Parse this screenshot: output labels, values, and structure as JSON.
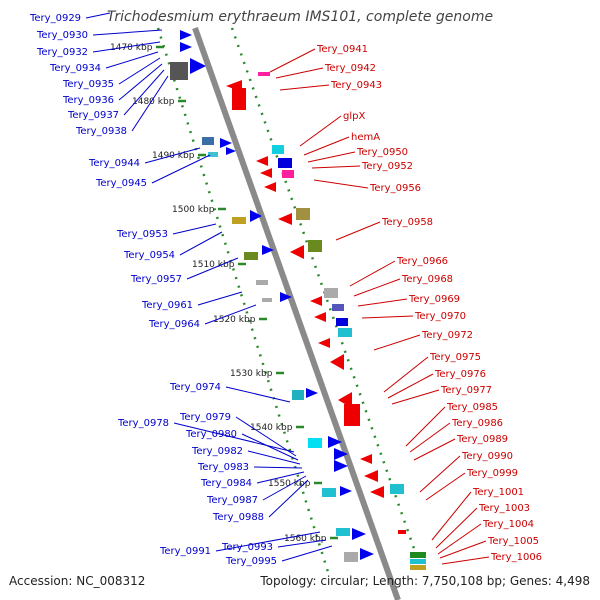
{
  "title": "Trichodesmium erythraeum IMS101, complete genome",
  "accession": "Accession: NC_008312",
  "summary": "Topology: circular; Length: 7,750,108 bp; Genes: 4,498",
  "ticks": [
    "1470 kbp",
    "1480 kbp",
    "1490 kbp",
    "1500 kbp",
    "1510 kbp",
    "1520 kbp",
    "1530 kbp",
    "1540 kbp",
    "1550 kbp",
    "1560 kbp"
  ],
  "left_genes": [
    "Tery_0929",
    "Tery_0930",
    "Tery_0932",
    "Tery_0934",
    "Tery_0935",
    "Tery_0936",
    "Tery_0937",
    "Tery_0938",
    "Tery_0944",
    "Tery_0945",
    "Tery_0953",
    "Tery_0954",
    "Tery_0957",
    "Tery_0961",
    "Tery_0964",
    "Tery_0974",
    "Tery_0978",
    "Tery_0979",
    "Tery_0980",
    "Tery_0982",
    "Tery_0983",
    "Tery_0984",
    "Tery_0987",
    "Tery_0988",
    "Tery_0991",
    "Tery_0993",
    "Tery_0995"
  ],
  "right_genes": [
    "Tery_0941",
    "Tery_0942",
    "Tery_0943",
    "glpX",
    "hemA",
    "Tery_0950",
    "Tery_0952",
    "Tery_0956",
    "Tery_0958",
    "Tery_0966",
    "Tery_0968",
    "Tery_0969",
    "Tery_0970",
    "Tery_0972",
    "Tery_0975",
    "Tery_0976",
    "Tery_0977",
    "Tery_0985",
    "Tery_0986",
    "Tery_0989",
    "Tery_0990",
    "Tery_0999",
    "Tery_1001",
    "Tery_1003",
    "Tery_1004",
    "Tery_1005",
    "Tery_1006"
  ],
  "colors": {
    "left_label": "#0000cc",
    "right_label": "#cc0000",
    "forward": "#0000ee",
    "reverse": "#ee0000",
    "axis": "#8a8a8a",
    "tick_dots": "#2a8a2a"
  }
}
